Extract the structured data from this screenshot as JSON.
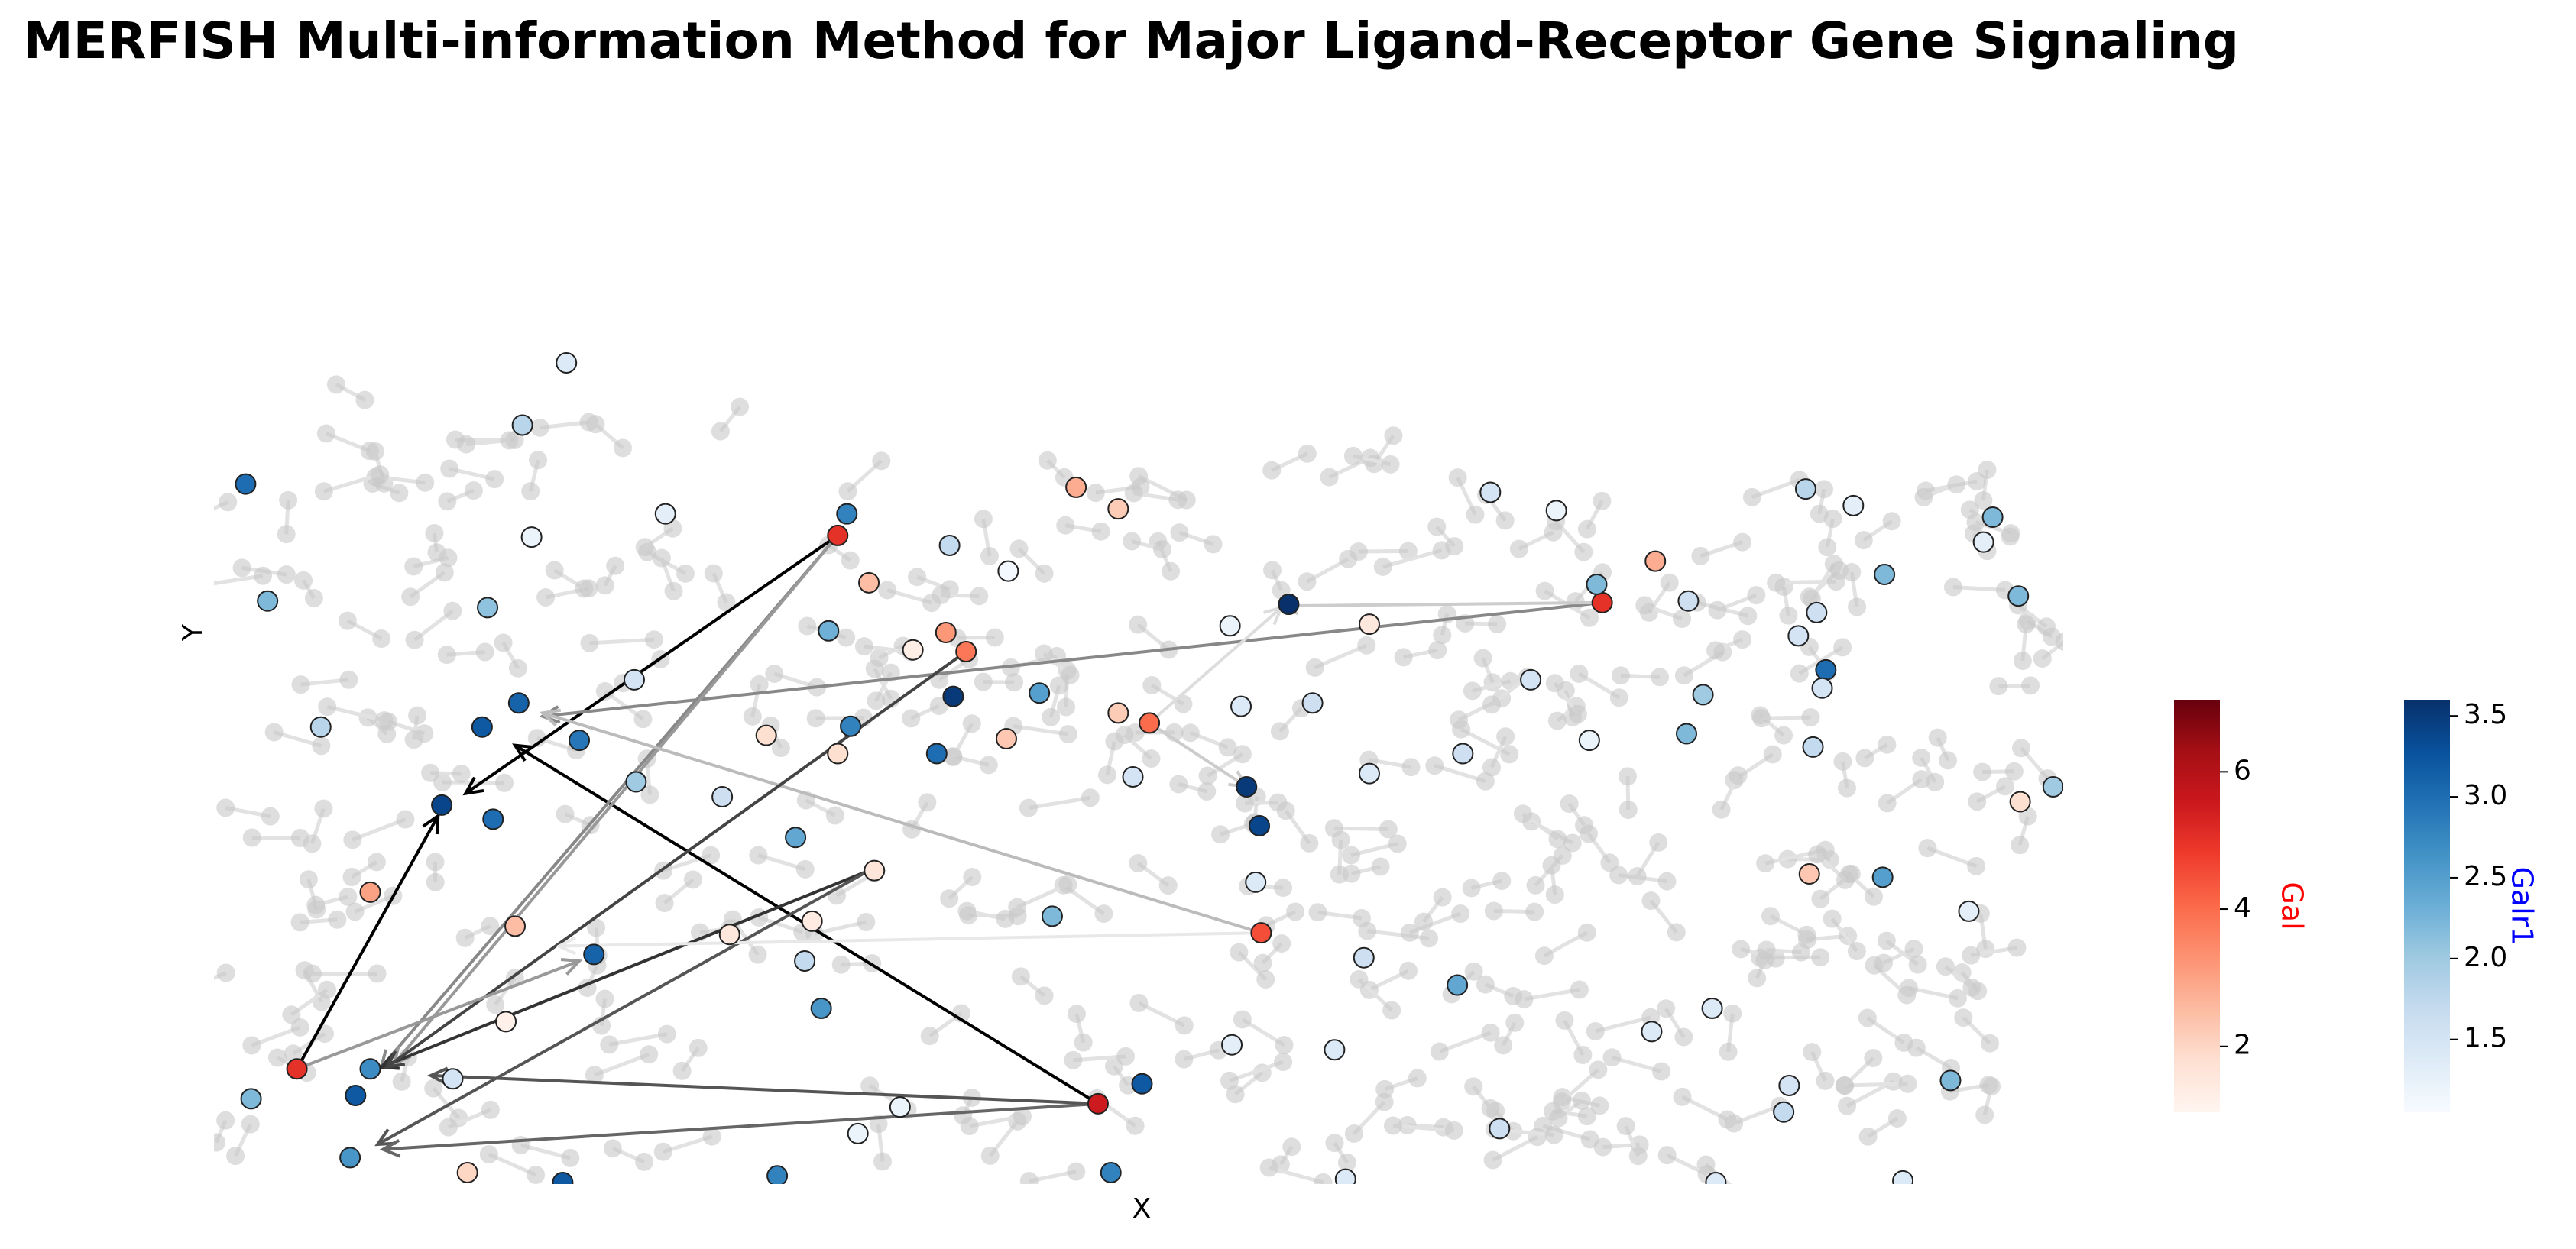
{
  "chart_data": {
    "type": "scatter",
    "title": "MERFISH Multi-information Method for Major Ligand-Receptor Gene Signaling",
    "xlabel": "X",
    "ylabel": "Y",
    "xlim": [
      0,
      100
    ],
    "ylim": [
      0,
      100
    ],
    "series": [
      {
        "name": "Gal",
        "colormap": "Reds",
        "label_color": "red",
        "clim": [
          1.04,
          7.05
        ],
        "cticks": [
          2,
          4,
          6
        ],
        "x": [
          33.4,
          3.9,
          47.6,
          75.1,
          56.5,
          50.4,
          40.4,
          39.3,
          46.4,
          48.7,
          35.1,
          7.9,
          15.8,
          78.0,
          86.4,
          42.6,
          48.7,
          13.2,
          97.9,
          29.5,
          27.5,
          33.4,
          62.4,
          35.4,
          32.0,
          15.3,
          37.5
        ],
        "y": [
          78.0,
          13.7,
          9.5,
          69.9,
          30.1,
          55.4,
          64.0,
          66.3,
          83.8,
          81.2,
          72.3,
          35.0,
          30.9,
          74.9,
          37.2,
          53.5,
          56.6,
          1.2,
          45.9,
          53.9,
          29.9,
          51.7,
          67.3,
          37.6,
          31.5,
          19.4,
          64.2
        ],
        "values": [
          5.0,
          5.0,
          5.5,
          5.0,
          4.5,
          4.0,
          3.8,
          3.2,
          2.8,
          2.2,
          2.5,
          3.0,
          2.5,
          2.8,
          2.3,
          2.3,
          2.2,
          2.0,
          1.8,
          1.8,
          1.5,
          1.8,
          1.5,
          1.6,
          1.4,
          1.2,
          1.3
        ]
      },
      {
        "name": "Galr1",
        "colormap": "Blues",
        "label_color": "blue",
        "clim": [
          1.05,
          3.6
        ],
        "cticks": [
          {
            "value": 1.5,
            "label": "1.5"
          },
          {
            "value": 2.0,
            "label": "2.0"
          },
          {
            "value": 2.5,
            "label": "2.5"
          },
          {
            "value": 3.0,
            "label": "3.0"
          },
          {
            "value": 3.5,
            "label": "3.5"
          }
        ],
        "x": [
          1.1,
          2.3,
          18.6,
          16.2,
          33.9,
          39.5,
          42.7,
          14.3,
          11.8,
          14.0,
          16.0,
          19.3,
          14.6,
          5.2,
          22.4,
          22.3,
          27.1,
          31.1,
          34.1,
          32.9,
          39.7,
          38.8,
          44.4,
          20.1,
          31.6,
          32.5,
          7.9,
          7.1,
          1.4,
          6.8,
          12.4,
          18.4,
          30.1,
          34.5,
          36.8,
          45.1,
          50.0,
          48.3,
          54.9,
          58.0,
          54.8,
          55.4,
          55.7,
          56.4,
          56.2,
          49.5,
          59.3,
          62.4,
          62.1,
          60.5,
          67.2,
          69.5,
          69.0,
          72.6,
          74.8,
          71.2,
          67.5,
          74.4,
          79.7,
          80.6,
          79.8,
          86.2,
          88.8,
          86.8,
          85.8,
          87.3,
          87.1,
          86.6,
          90.5,
          95.9,
          96.4,
          97.8,
          90.4,
          95.1,
          99.7,
          94.1,
          85.3,
          85.0,
          81.1,
          77.8,
          81.3,
          91.5,
          61.1,
          24.0,
          16.7
        ],
        "y": [
          84.2,
          70.1,
          98.8,
          91.3,
          80.6,
          76.8,
          73.7,
          69.3,
          45.5,
          54.9,
          57.8,
          53.3,
          43.8,
          54.9,
          48.3,
          60.6,
          46.5,
          41.6,
          55.0,
          66.5,
          58.6,
          51.7,
          59.0,
          27.5,
          26.7,
          21.0,
          13.7,
          10.5,
          10.1,
          3.0,
          12.5,
          0,
          0.8,
          5.9,
          9.1,
          32.1,
          11.9,
          1.2,
          16.6,
          69.7,
          67.1,
          57.4,
          47.7,
          43.0,
          36.2,
          48.9,
          57.8,
          49.3,
          27.1,
          16.0,
          23.8,
          6.5,
          83.2,
          81.0,
          72.1,
          60.6,
          51.7,
          53.3,
          54.1,
          58.8,
          70.1,
          83.6,
          81.6,
          68.7,
          65.9,
          61.8,
          59.6,
          52.5,
          73.3,
          77.2,
          80.2,
          70.7,
          36.8,
          32.7,
          47.7,
          12.3,
          11.7,
          8.5,
          21.0,
          18.2,
          0,
          0.2,
          0.4,
          80.6,
          77.8
        ],
        "values": [
          3.0,
          2.2,
          1.4,
          1.8,
          2.8,
          1.7,
          1.1,
          2.1,
          3.4,
          3.2,
          3.1,
          2.9,
          3.0,
          1.8,
          2.0,
          1.5,
          1.6,
          2.4,
          2.8,
          2.3,
          3.5,
          3.0,
          2.5,
          3.1,
          1.7,
          2.6,
          2.7,
          3.2,
          2.2,
          2.6,
          1.5,
          3.2,
          2.8,
          1.2,
          1.2,
          2.2,
          3.2,
          2.8,
          1.3,
          3.6,
          1.2,
          1.4,
          3.5,
          3.4,
          1.4,
          1.5,
          1.6,
          1.4,
          1.6,
          1.4,
          2.4,
          1.6,
          1.5,
          1.2,
          2.2,
          1.5,
          1.6,
          1.2,
          2.2,
          2.0,
          1.6,
          1.8,
          1.3,
          1.6,
          1.5,
          3.0,
          1.5,
          1.7,
          2.2,
          1.3,
          2.2,
          2.2,
          2.5,
          1.3,
          2.0,
          2.2,
          1.5,
          1.7,
          1.4,
          1.4,
          1.4,
          1.4,
          1.4,
          1.3,
          1.2
        ]
      }
    ],
    "links": [
      {
        "x": [
          33.4,
          13.1
        ],
        "y": [
          78.0,
          46.9
        ],
        "color": "#000000"
      },
      {
        "x": [
          3.9,
          11.6
        ],
        "y": [
          13.7,
          44.2
        ],
        "color": "#000000"
      },
      {
        "x": [
          47.6,
          15.8
        ],
        "y": [
          9.5,
          52.7
        ],
        "color": "#000000"
      },
      {
        "x": [
          75.1,
          17.3
        ],
        "y": [
          69.9,
          56.2
        ],
        "color": "#888888"
      },
      {
        "x": [
          33.4,
          8.5
        ],
        "y": [
          78.0,
          13.9
        ],
        "color": "#888888"
      },
      {
        "x": [
          33.4,
          9.2
        ],
        "y": [
          78.0,
          14.3
        ],
        "color": "#999999"
      },
      {
        "x": [
          35.1,
          8.5
        ],
        "y": [
          37.6,
          13.9
        ],
        "color": "#333333"
      },
      {
        "x": [
          35.1,
          8.3
        ],
        "y": [
          37.6,
          4.6
        ],
        "color": "#555555"
      },
      {
        "x": [
          47.6,
          8.6
        ],
        "y": [
          9.5,
          4.0
        ],
        "color": "#666666"
      },
      {
        "x": [
          47.6,
          11.2
        ],
        "y": [
          9.5,
          12.9
        ],
        "color": "#555555"
      },
      {
        "x": [
          56.5,
          17.3
        ],
        "y": [
          30.1,
          56.6
        ],
        "color": "#bbbbbb"
      },
      {
        "x": [
          40.4,
          8.8
        ],
        "y": [
          64.0,
          13.9
        ],
        "color": "#444444"
      },
      {
        "x": [
          3.9,
          19.3
        ],
        "y": [
          13.7,
          26.7
        ],
        "color": "#999999"
      },
      {
        "x": [
          75.1,
          57.6
        ],
        "y": [
          69.9,
          69.5
        ],
        "color": "#cccccc"
      },
      {
        "x": [
          50.4,
          57.6
        ],
        "y": [
          55.4,
          69.3
        ],
        "color": "#dddddd"
      },
      {
        "x": [
          50.4,
          55.7
        ],
        "y": [
          55.4,
          47.7
        ],
        "color": "#cccccc"
      },
      {
        "x": [
          56.5,
          18.2
        ],
        "y": [
          30.1,
          28.5
        ],
        "color": "#e8e8e8"
      }
    ]
  }
}
